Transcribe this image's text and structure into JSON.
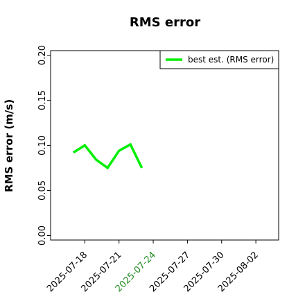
{
  "chart_data": {
    "type": "line",
    "title": "RMS error",
    "ylabel": "RMS error (m/s)",
    "x": [
      "2025-07-17",
      "2025-07-18",
      "2025-07-19",
      "2025-07-20",
      "2025-07-21",
      "2025-07-22",
      "2025-07-23"
    ],
    "series": [
      {
        "name": "best est. (RMS error)",
        "color": "#00ee00",
        "values": [
          0.092,
          0.1,
          0.084,
          0.075,
          0.094,
          0.101,
          0.075
        ]
      }
    ],
    "xlim": [
      "2025-07-15",
      "2025-08-04"
    ],
    "xticks": [
      "2025-07-18",
      "2025-07-21",
      "2025-07-24",
      "2025-07-27",
      "2025-07-30",
      "2025-08-02"
    ],
    "highlight_xtick": "2025-07-24",
    "highlight_color": "#228b22",
    "ylim": [
      -0.005,
      0.205
    ],
    "yticks": [
      {
        "value": 0,
        "label": "0.00"
      },
      {
        "value": 0.05,
        "label": "0.05"
      },
      {
        "value": 0.1,
        "label": "0.10"
      },
      {
        "value": 0.15,
        "label": "0.15"
      },
      {
        "value": 0.2,
        "label": "0.20"
      }
    ],
    "grid": false,
    "legend": "upper right"
  }
}
